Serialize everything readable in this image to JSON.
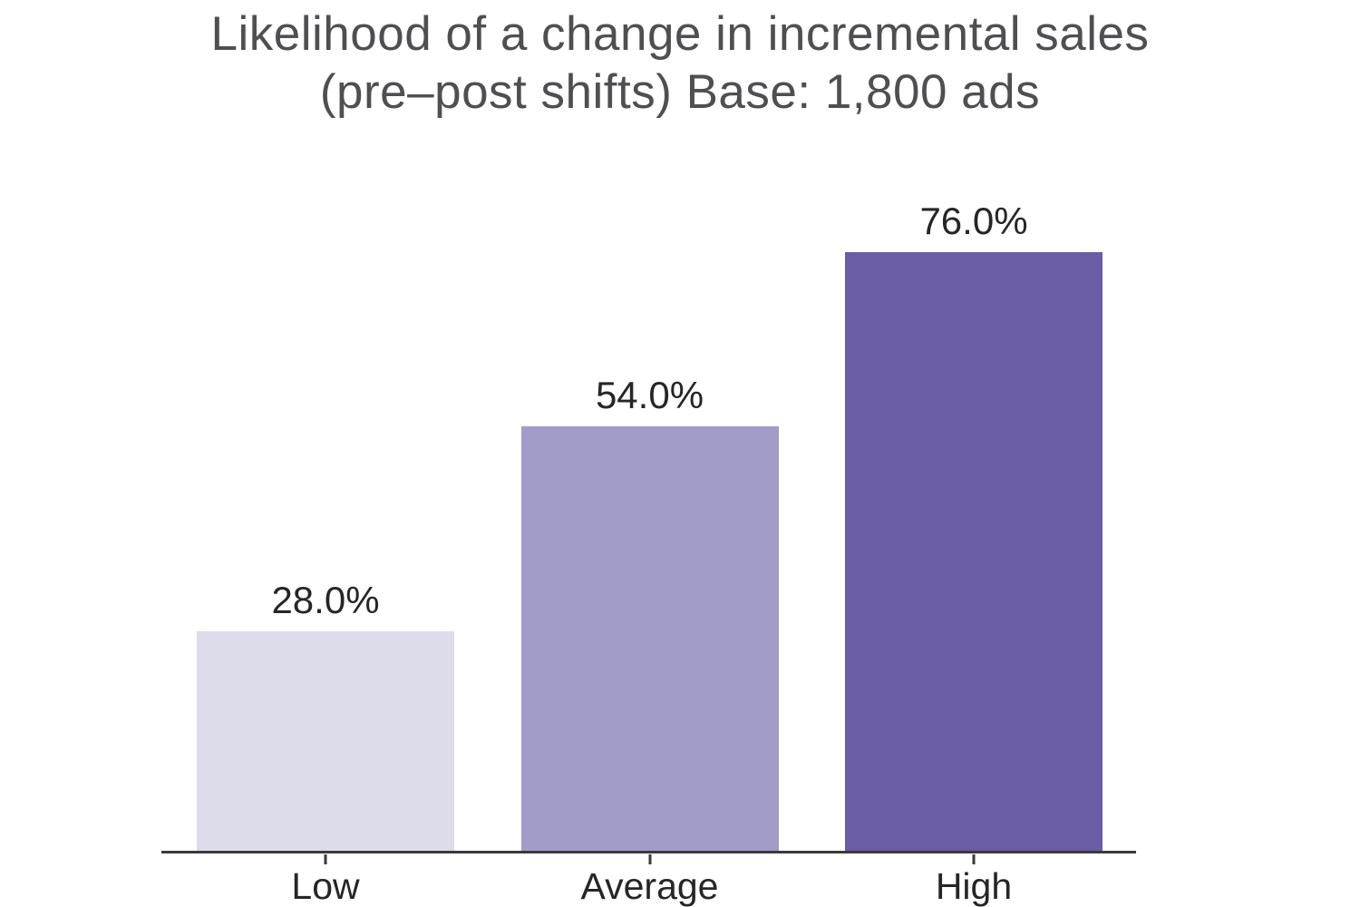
{
  "title": {
    "line1": "Likelihood of a change in incremental sales",
    "line2": "(pre–post shifts) Base: 1,800 ads"
  },
  "chart_data": {
    "type": "bar",
    "title": "Likelihood of a change in incremental sales (pre–post shifts) Base: 1,800 ads",
    "categories": [
      "Low",
      "Average",
      "High"
    ],
    "values": [
      28.0,
      54.0,
      76.0
    ],
    "value_labels": [
      "28.0%",
      "54.0%",
      "76.0%"
    ],
    "unit": "%",
    "xlabel": "",
    "ylabel": "",
    "ylim": [
      0,
      80
    ],
    "grid": false,
    "legend": false,
    "y_axis_visible": false,
    "bar_colors": [
      "#dddcea",
      "#a19cc8",
      "#6c5ba5"
    ],
    "colors": {
      "title_text": "#4f4f51",
      "label_text": "#262626",
      "axis_line": "#3a3a3a",
      "background": "#ffffff"
    }
  }
}
